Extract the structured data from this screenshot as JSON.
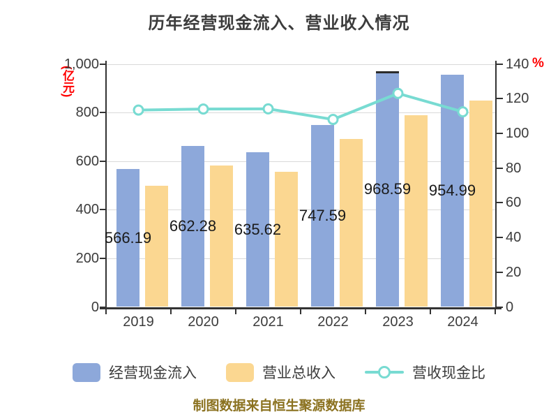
{
  "title": "历年经营现金流入、营业收入情况",
  "footer": "制图数据来自恒生聚源数据库",
  "colors": {
    "cash_bar": "#8DA8DA",
    "revenue_bar": "#FBD791",
    "ratio_line": "#78DBD2",
    "marker_fill": "#FFFFFF",
    "title_text": "#3C3C3C",
    "axis_text": "#3C3C3C",
    "unit_text": "#FF0000",
    "bar_label": "#1A1A1A",
    "gridline": "#D9D9D9",
    "axis_line": "#333333",
    "footer_text": "#8B7220",
    "max_bar_cap": "#2B2B2B"
  },
  "left_axis": {
    "unit": "(亿元)",
    "ticks": [
      "0",
      "200",
      "400",
      "600",
      "800",
      "1,000"
    ]
  },
  "right_axis": {
    "unit": "%",
    "ticks": [
      "0",
      "20",
      "40",
      "60",
      "80",
      "100",
      "120",
      "140"
    ]
  },
  "chart_data": {
    "type": "bar+line",
    "title": "历年经营现金流入、营业收入情况",
    "categories": [
      "2019",
      "2020",
      "2021",
      "2022",
      "2023",
      "2024"
    ],
    "series": [
      {
        "name": "经营现金流入",
        "type": "bar",
        "axis": "left",
        "show_labels": true,
        "values": [
          566.19,
          662.28,
          635.62,
          747.59,
          968.59,
          954.99
        ]
      },
      {
        "name": "营业总收入",
        "type": "bar",
        "axis": "left",
        "show_labels": false,
        "values": [
          499.2,
          581.0,
          557.1,
          692.2,
          787.5,
          849.6
        ]
      },
      {
        "name": "营收现金比",
        "type": "line",
        "axis": "right",
        "show_labels": false,
        "values": [
          113.4,
          114.0,
          114.1,
          108.0,
          123.0,
          112.4
        ]
      }
    ],
    "ylim_left": [
      0,
      1000
    ],
    "ylim_right": [
      0,
      140
    ],
    "grid": true,
    "legend_position": "bottom"
  },
  "legend": [
    {
      "label": "经营现金流入",
      "swatch": "bar-blue"
    },
    {
      "label": "营业总收入",
      "swatch": "bar-yellow"
    },
    {
      "label": "营收现金比",
      "swatch": "line-teal"
    }
  ]
}
